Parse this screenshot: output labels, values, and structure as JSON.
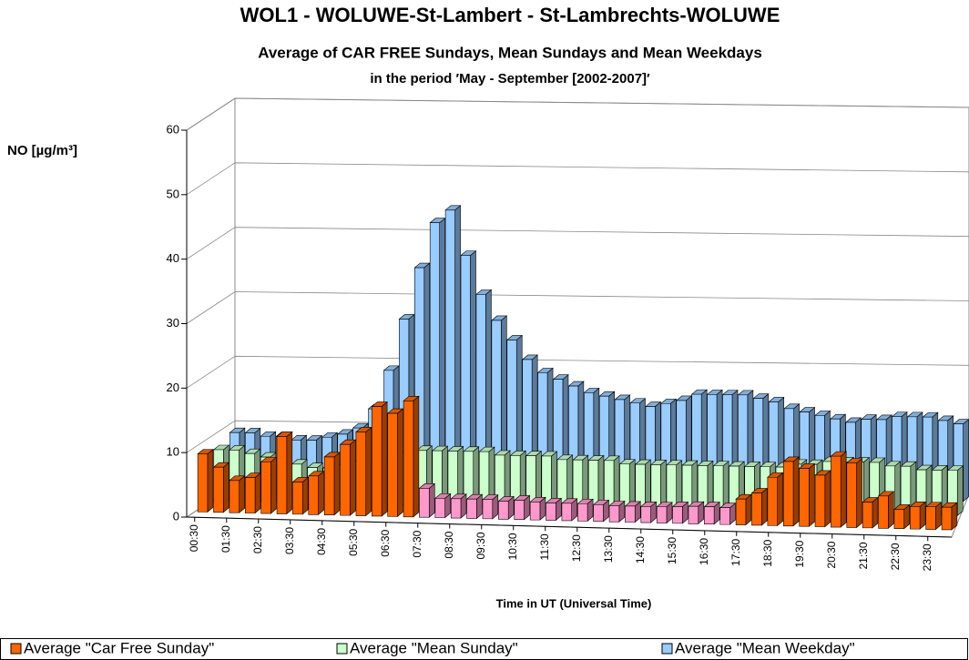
{
  "chart_data": {
    "type": "bar3d",
    "title": "WOL1 - WOLUWE-St-Lambert - St-Lambrechts-WOLUWE",
    "subtitle": "Average of CAR FREE Sundays, Mean Sundays and Mean Weekdays",
    "period": "in the period  ′May - September [2002-2007]′",
    "y_label": "NO  [µg/m³]",
    "x_label": "Time in UT (Universal Time)",
    "categories": [
      "00:30",
      null,
      "01:30",
      null,
      "02:30",
      null,
      "03:30",
      null,
      "04:30",
      null,
      "05:30",
      null,
      "06:30",
      null,
      "07:30",
      null,
      "08:30",
      null,
      "09:30",
      null,
      "10:30",
      null,
      "11:30",
      null,
      "12:30",
      null,
      "13:30",
      null,
      "14:30",
      null,
      "15:30",
      null,
      "16:30",
      null,
      "17:30",
      null,
      "18:30",
      null,
      "19:30",
      null,
      "20:30",
      null,
      "21:30",
      null,
      "22:30",
      null,
      "23:30",
      null
    ],
    "ylim": [
      0,
      60
    ],
    "yticks": [
      0,
      10,
      20,
      30,
      40,
      50,
      60
    ],
    "grid": true,
    "series": [
      {
        "name": "Average \"Car Free Sunday\"",
        "color": "#ff6600",
        "colors": [
          "#ff6600",
          "#ff6600",
          "#ff6600",
          "#ff6600",
          "#ff6600",
          "#ff6600",
          "#ff6600",
          "#ff6600",
          "#ff6600",
          "#ff6600",
          "#ff6600",
          "#ff6600",
          "#ff6600",
          "#ff6600",
          "#ff99cc",
          "#ff99cc",
          "#ff99cc",
          "#ff99cc",
          "#ff99cc",
          "#ff99cc",
          "#ff99cc",
          "#ff99cc",
          "#ff99cc",
          "#ff99cc",
          "#ff99cc",
          "#ff99cc",
          "#ff99cc",
          "#ff99cc",
          "#ff99cc",
          "#ff99cc",
          "#ff99cc",
          "#ff99cc",
          "#ff99cc",
          "#ff99cc",
          "#ff6600",
          "#ff6600",
          "#ff6600",
          "#ff6600",
          "#ff6600",
          "#ff6600",
          "#ff6600",
          "#ff6600",
          "#ff6600",
          "#ff6600",
          "#ff6600",
          "#ff6600",
          "#ff6600",
          "#ff6600"
        ],
        "values": [
          9,
          7,
          5,
          5.5,
          8,
          12,
          5,
          6,
          9,
          11,
          13,
          17,
          16,
          18,
          4.5,
          3,
          3,
          3,
          3,
          2.8,
          3,
          2.8,
          2.7,
          2.7,
          2.7,
          2.6,
          2.5,
          2.5,
          2.5,
          2.5,
          2.6,
          2.7,
          2.7,
          2.6,
          4,
          5,
          7.5,
          10,
          9,
          8,
          11,
          10,
          4,
          5,
          3,
          3.5,
          3.5,
          3.5
        ]
      },
      {
        "name": "Average \"Mean Sunday\"",
        "color": "#ccffcc",
        "values": [
          8,
          8,
          7.5,
          7,
          6.5,
          6,
          5.5,
          5.5,
          6,
          6.5,
          7,
          7.5,
          8,
          8.5,
          8.5,
          8.5,
          8.5,
          8.5,
          8,
          8,
          8,
          8,
          7.5,
          7.5,
          7.5,
          7.5,
          7,
          7,
          7,
          7,
          7,
          7,
          7,
          7,
          7,
          7,
          7,
          7.5,
          7.5,
          8,
          8,
          8,
          8,
          7.5,
          7.5,
          7,
          7,
          7
        ]
      },
      {
        "name": "Average \"Mean Weekday\"",
        "color": "#99ccff",
        "values": [
          9,
          9,
          8.5,
          8.5,
          8,
          8,
          8.5,
          9,
          10,
          13,
          19,
          27,
          35,
          42,
          44,
          37,
          31,
          27,
          24,
          21,
          19,
          18,
          17,
          16,
          15.5,
          15,
          14.5,
          14,
          14.5,
          15,
          16,
          16,
          16,
          16,
          15.5,
          15,
          14,
          13.5,
          13,
          12.5,
          12,
          12.5,
          12.5,
          13,
          13,
          13,
          12.5,
          12
        ]
      }
    ]
  }
}
